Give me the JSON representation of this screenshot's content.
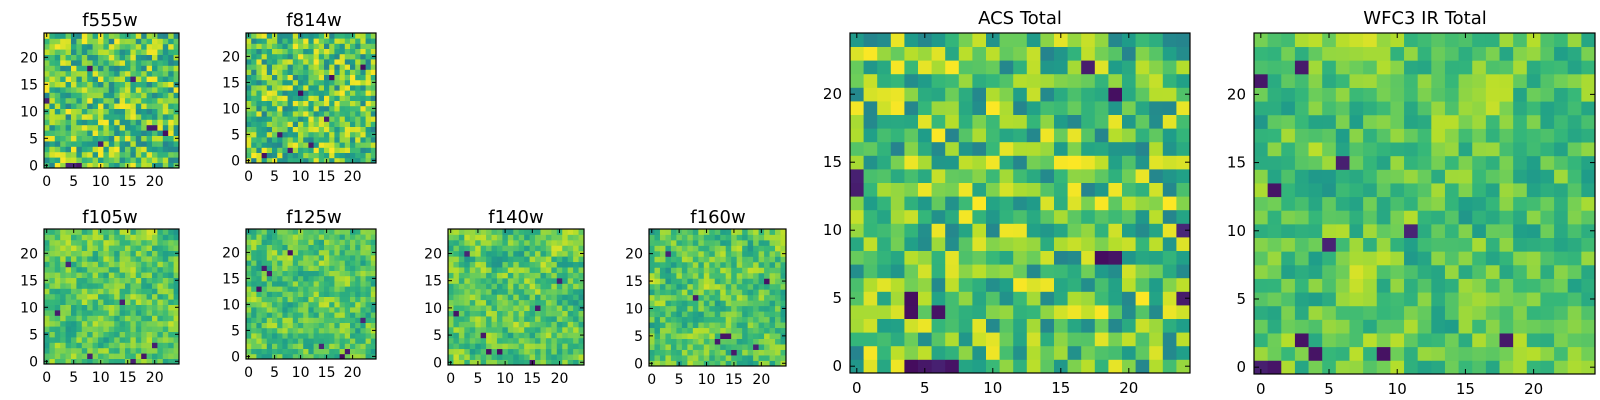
{
  "chart_data": [
    {
      "type": "heatmap",
      "title": "f555w",
      "grid_size": 25,
      "xlim": [
        -0.5,
        24.5
      ],
      "ylim": [
        -0.5,
        24.5
      ],
      "xticks": [
        0,
        5,
        10,
        15,
        20
      ],
      "yticks": [
        0,
        5,
        10,
        15,
        20
      ],
      "colormap": "viridis",
      "origin": "lower",
      "seed": 1,
      "smooth": 0,
      "low_cells": [
        [
          4,
          0
        ],
        [
          5,
          0
        ],
        [
          6,
          0
        ],
        [
          0,
          12
        ],
        [
          10,
          4
        ],
        [
          19,
          7
        ],
        [
          20,
          7
        ],
        [
          22,
          6
        ],
        [
          8,
          18
        ],
        [
          16,
          16
        ]
      ]
    },
    {
      "type": "heatmap",
      "title": "f814w",
      "grid_size": 25,
      "xlim": [
        -0.5,
        24.5
      ],
      "ylim": [
        -0.5,
        24.5
      ],
      "xticks": [
        0,
        5,
        10,
        15,
        20
      ],
      "yticks": [
        0,
        5,
        10,
        15,
        20
      ],
      "colormap": "viridis",
      "origin": "lower",
      "seed": 2,
      "smooth": 0,
      "low_cells": [
        [
          16,
          16
        ],
        [
          6,
          5
        ],
        [
          12,
          3
        ],
        [
          8,
          2
        ],
        [
          3,
          1
        ],
        [
          22,
          18
        ],
        [
          10,
          13
        ],
        [
          15,
          8
        ]
      ]
    },
    {
      "type": "heatmap",
      "title": "f105w",
      "grid_size": 25,
      "xlim": [
        -0.5,
        24.5
      ],
      "ylim": [
        -0.5,
        24.5
      ],
      "xticks": [
        0,
        5,
        10,
        15,
        20
      ],
      "yticks": [
        0,
        5,
        10,
        15,
        20
      ],
      "colormap": "viridis",
      "origin": "lower",
      "seed": 3,
      "smooth": 1,
      "low_cells": [
        [
          4,
          18
        ],
        [
          18,
          1
        ],
        [
          16,
          0
        ],
        [
          20,
          3
        ],
        [
          2,
          9
        ],
        [
          8,
          1
        ],
        [
          14,
          11
        ]
      ]
    },
    {
      "type": "heatmap",
      "title": "f125w",
      "grid_size": 25,
      "xlim": [
        -0.5,
        24.5
      ],
      "ylim": [
        -0.5,
        24.5
      ],
      "xticks": [
        0,
        5,
        10,
        15,
        20
      ],
      "yticks": [
        0,
        5,
        10,
        15,
        20
      ],
      "colormap": "viridis",
      "origin": "lower",
      "seed": 4,
      "smooth": 1,
      "low_cells": [
        [
          3,
          17
        ],
        [
          4,
          16
        ],
        [
          2,
          13
        ],
        [
          14,
          2
        ],
        [
          19,
          1
        ],
        [
          8,
          20
        ],
        [
          18,
          0
        ],
        [
          22,
          7
        ]
      ]
    },
    {
      "type": "heatmap",
      "title": "f140w",
      "grid_size": 25,
      "xlim": [
        -0.5,
        24.5
      ],
      "ylim": [
        -0.5,
        24.5
      ],
      "xticks": [
        0,
        5,
        10,
        15,
        20
      ],
      "yticks": [
        0,
        5,
        10,
        15,
        20
      ],
      "colormap": "viridis",
      "origin": "lower",
      "seed": 5,
      "smooth": 1,
      "low_cells": [
        [
          1,
          9
        ],
        [
          7,
          2
        ],
        [
          16,
          10
        ],
        [
          15,
          0
        ],
        [
          6,
          5
        ],
        [
          9,
          2
        ],
        [
          20,
          15
        ],
        [
          3,
          20
        ]
      ]
    },
    {
      "type": "heatmap",
      "title": "f160w",
      "grid_size": 25,
      "xlim": [
        -0.5,
        24.5
      ],
      "ylim": [
        -0.5,
        24.5
      ],
      "xticks": [
        0,
        5,
        10,
        15,
        20
      ],
      "yticks": [
        0,
        5,
        10,
        15,
        20
      ],
      "colormap": "viridis",
      "origin": "lower",
      "seed": 6,
      "smooth": 1,
      "low_cells": [
        [
          13,
          5
        ],
        [
          14,
          5
        ],
        [
          12,
          4
        ],
        [
          15,
          2
        ],
        [
          3,
          20
        ],
        [
          8,
          12
        ],
        [
          21,
          15
        ],
        [
          19,
          3
        ]
      ]
    },
    {
      "type": "heatmap",
      "title": "ACS Total",
      "grid_size": 25,
      "xlim": [
        -0.5,
        24.5
      ],
      "ylim": [
        -0.5,
        24.5
      ],
      "xticks": [
        0,
        5,
        10,
        15,
        20
      ],
      "yticks": [
        0,
        5,
        10,
        15,
        20
      ],
      "colormap": "viridis",
      "origin": "lower",
      "seed": 7,
      "smooth": 0,
      "low_cells": [
        [
          4,
          0
        ],
        [
          5,
          0
        ],
        [
          6,
          0
        ],
        [
          7,
          0
        ],
        [
          4,
          4
        ],
        [
          4,
          5
        ],
        [
          0,
          13
        ],
        [
          0,
          14
        ],
        [
          18,
          8
        ],
        [
          19,
          8
        ],
        [
          24,
          5
        ],
        [
          24,
          10
        ],
        [
          17,
          22
        ],
        [
          6,
          4
        ],
        [
          19,
          20
        ]
      ]
    },
    {
      "type": "heatmap",
      "title": "WFC3 IR Total",
      "grid_size": 25,
      "xlim": [
        -0.5,
        24.5
      ],
      "ylim": [
        -0.5,
        24.5
      ],
      "xticks": [
        0,
        5,
        10,
        15,
        20
      ],
      "yticks": [
        0,
        5,
        10,
        15,
        20
      ],
      "colormap": "viridis",
      "origin": "lower",
      "seed": 8,
      "smooth": 1,
      "low_cells": [
        [
          0,
          0
        ],
        [
          1,
          0
        ],
        [
          3,
          2
        ],
        [
          4,
          1
        ],
        [
          6,
          15
        ],
        [
          11,
          10
        ],
        [
          9,
          1
        ],
        [
          5,
          9
        ],
        [
          1,
          13
        ],
        [
          3,
          22
        ],
        [
          18,
          2
        ],
        [
          0,
          21
        ]
      ]
    }
  ]
}
